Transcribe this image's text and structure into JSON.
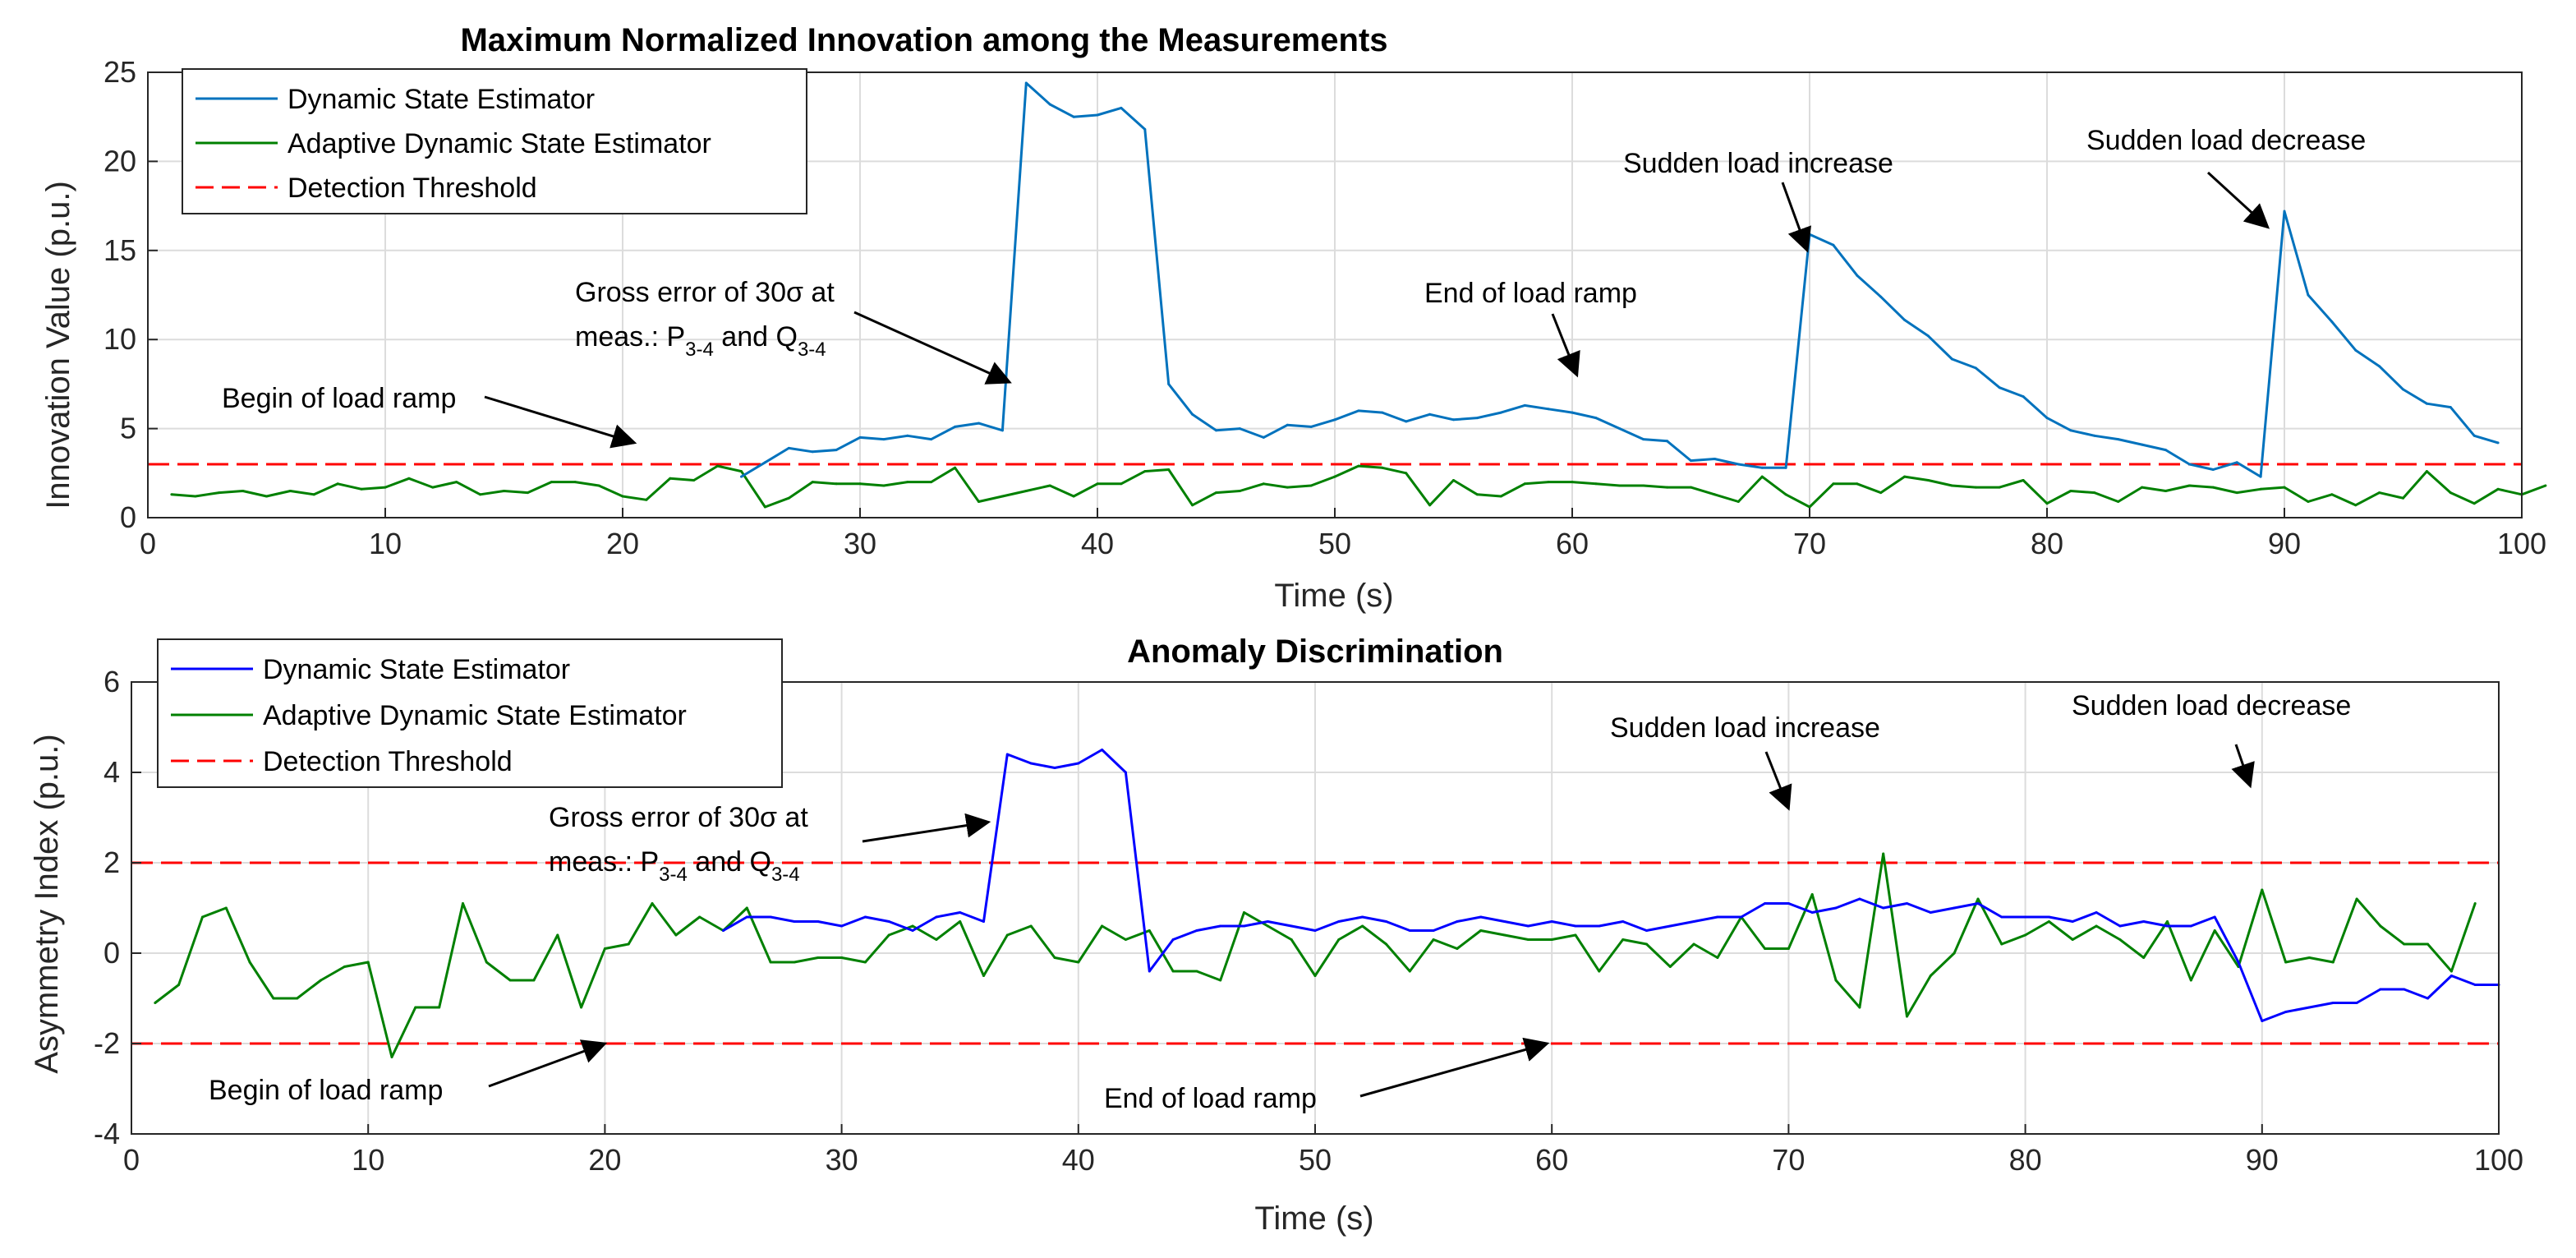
{
  "colors": {
    "dse_top": "#0072BD",
    "dse_bottom": "#0000FF",
    "adse": "#008000",
    "threshold": "#FF0000",
    "arrow": "#000000"
  },
  "chart_data": [
    {
      "type": "line",
      "title": "Maximum Normalized Innovation among the Measurements",
      "xlabel": "Time (s)",
      "ylabel": "Innovation Value (p.u.)",
      "xlim": [
        0,
        100
      ],
      "ylim": [
        0,
        25
      ],
      "xticks": [
        0,
        10,
        20,
        30,
        40,
        50,
        60,
        70,
        80,
        90,
        100
      ],
      "yticks": [
        0,
        5,
        10,
        15,
        20,
        25
      ],
      "grid": true,
      "legend_position": "top-left",
      "legend": [
        "Dynamic State Estimator",
        "Adaptive Dynamic State Estimator",
        "Detection Threshold"
      ],
      "series": [
        {
          "name": "Dynamic State Estimator",
          "x_start": 25,
          "x_step": 1,
          "values": [
            2.3,
            3.1,
            3.9,
            3.7,
            3.8,
            4.5,
            4.4,
            4.6,
            4.4,
            5.1,
            5.3,
            4.9,
            24.4,
            23.2,
            22.5,
            22.6,
            23.0,
            21.8,
            7.5,
            5.8,
            4.9,
            5.0,
            4.5,
            5.2,
            5.1,
            5.5,
            6.0,
            5.9,
            5.4,
            5.8,
            5.5,
            5.6,
            5.9,
            6.3,
            6.1,
            5.9,
            5.6,
            5.0,
            4.4,
            4.3,
            3.2,
            3.3,
            3.0,
            2.8,
            2.8,
            15.9,
            15.3,
            13.6,
            12.4,
            11.1,
            10.2,
            8.9,
            8.4,
            7.3,
            6.8,
            5.6,
            4.9,
            4.6,
            4.4,
            4.1,
            3.8,
            3.0,
            2.7,
            3.1,
            2.3,
            17.2,
            12.5,
            11.0,
            9.4,
            8.5,
            7.2,
            6.4,
            6.2,
            4.6,
            4.2
          ]
        },
        {
          "name": "Adaptive Dynamic State Estimator",
          "x_start": 1,
          "x_step": 1,
          "values": [
            1.3,
            1.2,
            1.4,
            1.5,
            1.2,
            1.5,
            1.3,
            1.9,
            1.6,
            1.7,
            2.2,
            1.7,
            2.0,
            1.3,
            1.5,
            1.4,
            2.0,
            2.0,
            1.8,
            1.2,
            1.0,
            2.2,
            2.1,
            2.9,
            2.6,
            0.6,
            1.1,
            2.0,
            1.9,
            1.9,
            1.8,
            2.0,
            2.0,
            2.8,
            0.9,
            1.2,
            1.5,
            1.8,
            1.2,
            1.9,
            1.9,
            2.6,
            2.7,
            0.7,
            1.4,
            1.5,
            1.9,
            1.7,
            1.8,
            2.3,
            2.9,
            2.8,
            2.5,
            0.7,
            2.1,
            1.3,
            1.2,
            1.9,
            2.0,
            2.0,
            1.9,
            1.8,
            1.8,
            1.7,
            1.7,
            1.3,
            0.9,
            2.3,
            1.3,
            0.6,
            1.9,
            1.9,
            1.4,
            2.3,
            2.1,
            1.8,
            1.7,
            1.7,
            2.1,
            0.8,
            1.5,
            1.4,
            0.9,
            1.7,
            1.5,
            1.8,
            1.7,
            1.4,
            1.6,
            1.7,
            0.9,
            1.3,
            0.7,
            1.4,
            1.1,
            2.6,
            1.4,
            0.8,
            1.6,
            1.3,
            1.8
          ]
        },
        {
          "name": "Detection Threshold",
          "constant": 3
        }
      ],
      "annotations": [
        {
          "text": "Begin of load ramp",
          "target_x": 20.5,
          "target_y": 4.2
        },
        {
          "line1": "Gross error of 30σ at",
          "line2_prefix": "meas.: P",
          "sub1": "3-4",
          "mid": " and Q",
          "sub2": "3-4",
          "target_x": 36.3,
          "target_y": 7.6
        },
        {
          "text": "End of load ramp",
          "target_x": 60.2,
          "target_y": 8.0
        },
        {
          "text": "Sudden load increase",
          "target_x": 69.9,
          "target_y": 15.0
        },
        {
          "text": "Sudden load decrease",
          "target_x": 89.3,
          "target_y": 16.3
        }
      ]
    },
    {
      "type": "line",
      "title": "Anomaly Discrimination",
      "xlabel": "Time (s)",
      "ylabel": "Asymmetry Index (p.u.)",
      "xlim": [
        0,
        100
      ],
      "ylim": [
        -4,
        6
      ],
      "xticks": [
        0,
        10,
        20,
        30,
        40,
        50,
        60,
        70,
        80,
        90,
        100
      ],
      "yticks": [
        -4,
        -2,
        0,
        2,
        4,
        6
      ],
      "grid": true,
      "legend_position": "top-left",
      "legend": [
        "Dynamic State Estimator",
        "Adaptive Dynamic State Estimator",
        "Detection Threshold"
      ],
      "series": [
        {
          "name": "Dynamic State Estimator",
          "x_start": 25,
          "x_step": 1,
          "values": [
            0.5,
            0.8,
            0.8,
            0.7,
            0.7,
            0.6,
            0.8,
            0.7,
            0.5,
            0.8,
            0.9,
            0.7,
            4.4,
            4.2,
            4.1,
            4.2,
            4.5,
            4.0,
            -0.4,
            0.3,
            0.5,
            0.6,
            0.6,
            0.7,
            0.6,
            0.5,
            0.7,
            0.8,
            0.7,
            0.5,
            0.5,
            0.7,
            0.8,
            0.7,
            0.6,
            0.7,
            0.6,
            0.6,
            0.7,
            0.5,
            0.6,
            0.7,
            0.8,
            0.8,
            1.1,
            1.1,
            0.9,
            1.0,
            1.2,
            1.0,
            1.1,
            0.9,
            1.0,
            1.1,
            0.8,
            0.8,
            0.8,
            0.7,
            0.9,
            0.6,
            0.7,
            0.6,
            0.6,
            0.8,
            -0.2,
            -1.5,
            -1.3,
            -1.2,
            -1.1,
            -1.1,
            -0.8,
            -0.8,
            -1.0,
            -0.5,
            -0.7,
            -0.7
          ]
        },
        {
          "name": "Adaptive Dynamic State Estimator",
          "x_start": 1,
          "x_step": 1,
          "values": [
            -1.1,
            -0.7,
            0.8,
            1.0,
            -0.2,
            -1.0,
            -1.0,
            -0.6,
            -0.3,
            -0.2,
            -2.3,
            -1.2,
            -1.2,
            1.1,
            -0.2,
            -0.6,
            -0.6,
            0.4,
            -1.2,
            0.1,
            0.2,
            1.1,
            0.4,
            0.8,
            0.5,
            1.0,
            -0.2,
            -0.2,
            -0.1,
            -0.1,
            -0.2,
            0.4,
            0.6,
            0.3,
            0.7,
            -0.5,
            0.4,
            0.6,
            -0.1,
            -0.2,
            0.6,
            0.3,
            0.5,
            -0.4,
            -0.4,
            -0.6,
            0.9,
            0.6,
            0.3,
            -0.5,
            0.3,
            0.6,
            0.2,
            -0.4,
            0.3,
            0.1,
            0.5,
            0.4,
            0.3,
            0.3,
            0.4,
            -0.4,
            0.3,
            0.2,
            -0.3,
            0.2,
            -0.1,
            0.8,
            0.1,
            0.1,
            1.3,
            -0.6,
            -1.2,
            2.2,
            -1.4,
            -0.5,
            0.0,
            1.2,
            0.2,
            0.4,
            0.7,
            0.3,
            0.6,
            0.3,
            -0.1,
            0.7,
            -0.6,
            0.5,
            -0.3,
            1.4,
            -0.2,
            -0.1,
            -0.2,
            1.2,
            0.6,
            0.2,
            0.2,
            -0.4,
            1.1
          ]
        },
        {
          "name": "Detection Threshold",
          "constants": [
            2,
            -2
          ]
        }
      ],
      "annotations": [
        {
          "line1": "Gross error of 30σ at",
          "line2_prefix": "meas.: P",
          "sub1": "3-4",
          "mid": " and Q",
          "sub2": "3-4",
          "target_x": 36.2,
          "target_y": 2.9
        },
        {
          "text": "Begin of load ramp",
          "target_x": 20.0,
          "target_y": -2.0
        },
        {
          "text": "End of load ramp",
          "target_x": 59.8,
          "target_y": -2.0
        },
        {
          "text": "Sudden load increase",
          "target_x": 70.0,
          "target_y": 3.2
        },
        {
          "text": "Sudden load decrease",
          "target_x": 89.5,
          "target_y": 3.7
        }
      ]
    }
  ]
}
